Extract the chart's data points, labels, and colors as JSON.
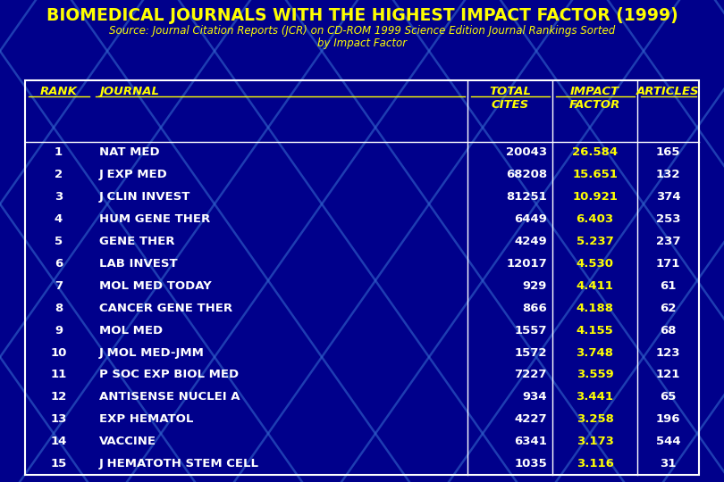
{
  "title": "BIOMEDICAL JOURNALS WITH THE HIGHEST IMPACT FACTOR (1999)",
  "subtitle_line1": "Source: Journal Citation Reports (JCR) on CD-ROM 1999 Science Edition Journal Rankings Sorted",
  "subtitle_line2": "by Impact Factor",
  "bg_color": "#00008B",
  "title_color": "#FFFF00",
  "subtitle_color": "#FFFF00",
  "header_color": "#FFFF00",
  "rank_color": "#FFFFFF",
  "journal_color": "#FFFFFF",
  "cites_color": "#FFFFFF",
  "impact_color": "#FFFF00",
  "articles_color": "#FFFFFF",
  "table_border_color": "#FFFFFF",
  "line_color": "#3366CC",
  "ranks": [
    1,
    2,
    3,
    4,
    5,
    6,
    7,
    8,
    9,
    10,
    11,
    12,
    13,
    14,
    15
  ],
  "journals": [
    "NAT MED",
    "J EXP MED",
    "J CLIN INVEST",
    "HUM GENE THER",
    "GENE THER",
    "LAB INVEST",
    "MOL MED TODAY",
    "CANCER GENE THER",
    "MOL MED",
    "J MOL MED-JMM",
    "P SOC EXP BIOL MED",
    "ANTISENSE NUCLEI A",
    "EXP HEMATOL",
    "VACCINE",
    "J HEMATOTH STEM CELL"
  ],
  "total_cites": [
    "20043",
    "68208",
    "81251",
    "6449",
    "4249",
    "12017",
    "929",
    "866",
    "1557",
    "1572",
    "7227",
    "934",
    "4227",
    "6341",
    "1035"
  ],
  "impact_factors": [
    "26.584",
    "15.651",
    "10.921",
    "6.403",
    "5.237",
    "4.530",
    "4.411",
    "4.188",
    "4.155",
    "3.748",
    "3.559",
    "3.441",
    "3.258",
    "3.173",
    "3.116"
  ],
  "articles": [
    "165",
    "132",
    "374",
    "253",
    "237",
    "171",
    "61",
    "62",
    "68",
    "123",
    "121",
    "65",
    "196",
    "544",
    "31"
  ],
  "col_header_rank": "RANK",
  "col_header_journal": "JOURNAL",
  "col_header_cites1": "TOTAL",
  "col_header_cites2": "CITES",
  "col_header_impact1": "IMPACT",
  "col_header_impact2": "FACTOR",
  "col_header_articles": "ARTICLES",
  "fig_width": 8.1,
  "fig_height": 5.4,
  "dpi": 100
}
